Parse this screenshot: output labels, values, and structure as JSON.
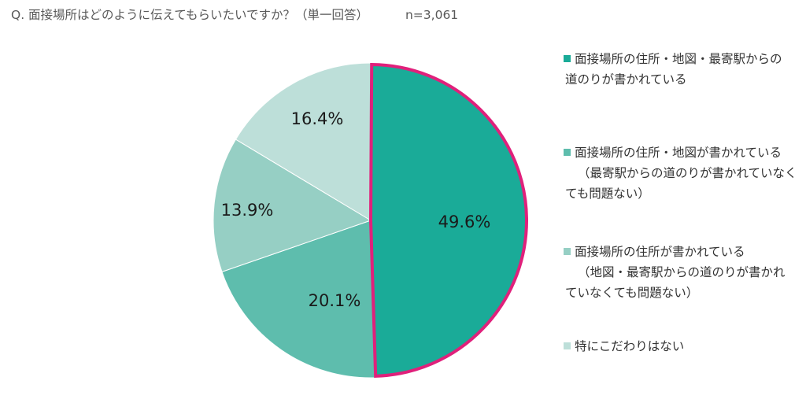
{
  "question": {
    "text": "Q.  面接場所はどのように伝えてもらいたいですか？（単一回答）",
    "n": "n=3,061"
  },
  "chart_data": {
    "type": "pie",
    "start_angle_deg": 0,
    "direction": "clockwise",
    "highlighted_slice": 0,
    "highlight_color": "#e0207b",
    "slices": [
      {
        "value": 49.6,
        "label": "49.6%",
        "color": "#1aab98",
        "legend_lines": [
          "面接場所の住所・地図・最寄駅からの",
          "道のりが書かれている"
        ]
      },
      {
        "value": 20.1,
        "label": "20.1%",
        "color": "#5ebdad",
        "legend_lines": [
          "面接場所の住所・地図が書かれている",
          "（最寄駅からの道のりが書かれていなく",
          "ても問題ない）"
        ]
      },
      {
        "value": 13.9,
        "label": "13.9%",
        "color": "#96cfc4",
        "legend_lines": [
          "面接場所の住所が書かれている",
          "（地図・最寄駅からの道のりが書かれ",
          "ていなくても問題ない）"
        ]
      },
      {
        "value": 16.4,
        "label": "16.4%",
        "color": "#bddfd9",
        "legend_lines": [
          "特にこだわりはない"
        ]
      }
    ]
  }
}
